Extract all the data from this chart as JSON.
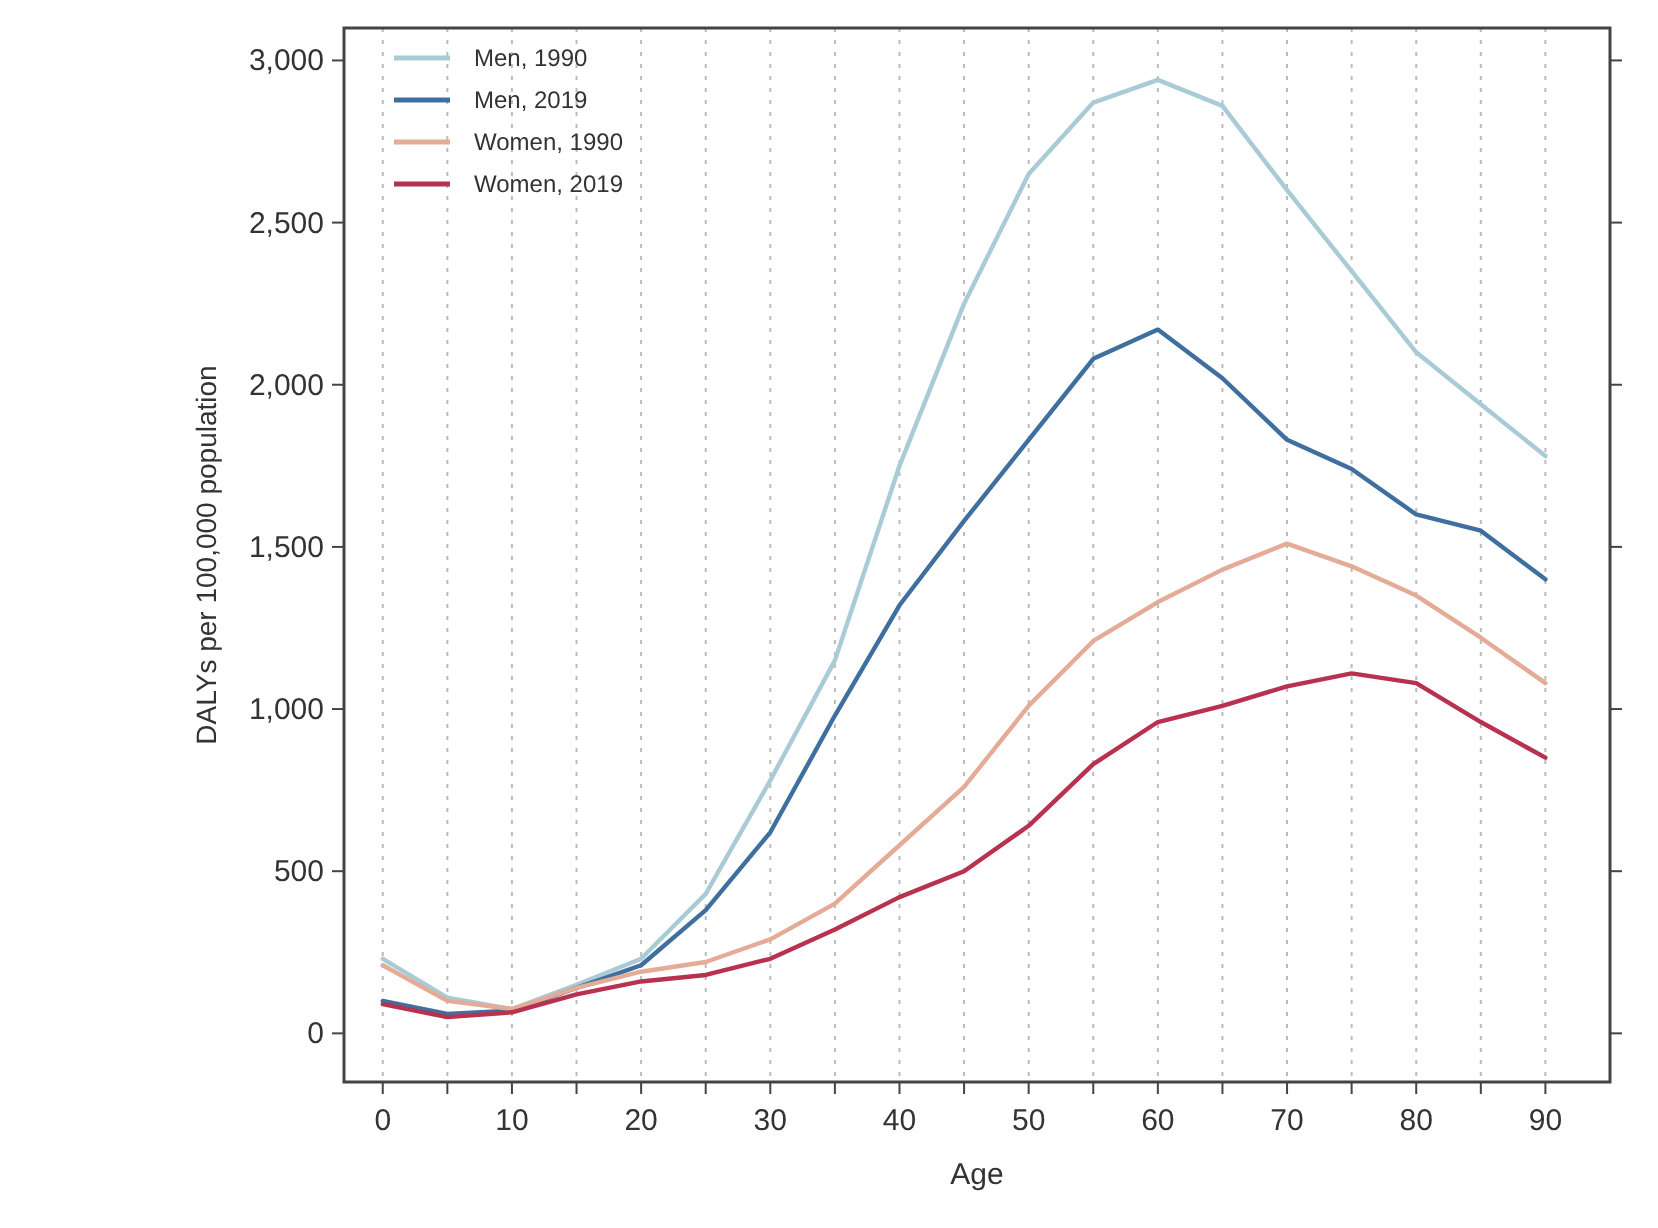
{
  "chart_data": {
    "type": "line",
    "xlabel": "Age",
    "ylabel": "DALYs per 100,000 population",
    "x": [
      0,
      5,
      10,
      15,
      20,
      25,
      30,
      35,
      40,
      45,
      50,
      55,
      60,
      65,
      70,
      75,
      80,
      85,
      90
    ],
    "series": [
      {
        "name": "Men, 1990",
        "color": "#a9cbd6",
        "values": [
          230,
          110,
          75,
          150,
          230,
          430,
          780,
          1150,
          1750,
          2250,
          2650,
          2870,
          2940,
          2860,
          2600,
          2350,
          2100,
          1940,
          1780
        ]
      },
      {
        "name": "Men, 2019",
        "color": "#3f6f9e",
        "values": [
          100,
          60,
          70,
          140,
          210,
          380,
          620,
          980,
          1320,
          1580,
          1830,
          2080,
          2170,
          2020,
          1830,
          1740,
          1600,
          1550,
          1400
        ]
      },
      {
        "name": "Women, 1990",
        "color": "#e4ab96",
        "values": [
          210,
          100,
          75,
          140,
          190,
          220,
          290,
          400,
          580,
          760,
          1010,
          1210,
          1330,
          1430,
          1510,
          1440,
          1350,
          1220,
          1080
        ]
      },
      {
        "name": "Women, 2019",
        "color": "#b8324f",
        "values": [
          90,
          50,
          65,
          120,
          160,
          180,
          230,
          320,
          420,
          500,
          640,
          830,
          960,
          1010,
          1070,
          1110,
          1080,
          960,
          850
        ]
      }
    ],
    "xlim": [
      -3,
      95
    ],
    "xticks": [
      0,
      {
        "value": 5,
        "label": null
      },
      10,
      {
        "value": 15,
        "label": null
      },
      20,
      {
        "value": 25,
        "label": null
      },
      30,
      {
        "value": 35,
        "label": null
      },
      40,
      {
        "value": 45,
        "label": null
      },
      50,
      {
        "value": 55,
        "label": null
      },
      60,
      {
        "value": 65,
        "label": null
      },
      70,
      {
        "value": 75,
        "label": null
      },
      80,
      {
        "value": 85,
        "label": null
      },
      90
    ],
    "ylim": [
      -150,
      3100
    ],
    "yticks": [
      0,
      {
        "value": 500,
        "label": "500"
      },
      {
        "value": 1000,
        "label": "1,000"
      },
      {
        "value": 1500,
        "label": "1,500"
      },
      {
        "value": 2000,
        "label": "2,000"
      },
      {
        "value": 2500,
        "label": "2,500"
      },
      {
        "value": 3000,
        "label": "3,000"
      }
    ],
    "grid": "x",
    "legend": "top left",
    "line_style": "solid"
  }
}
